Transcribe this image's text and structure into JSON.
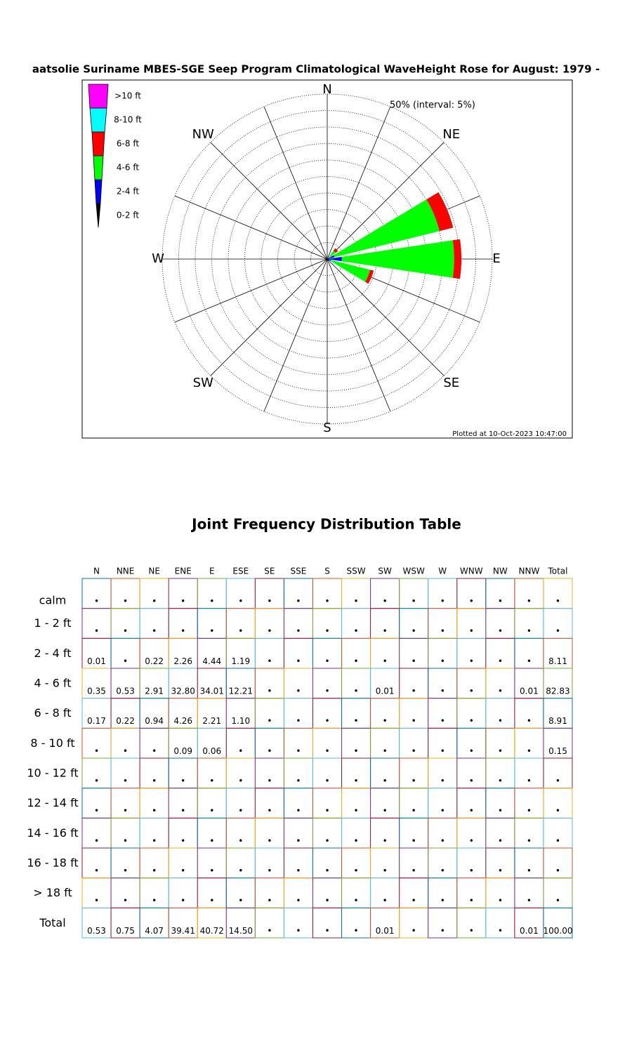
{
  "chart_data": {
    "type": "rose",
    "title": "aatsolie Suriname MBES-SGE Seep Program Climatological WaveHeight Rose for August: 1979 -",
    "ring_label": "50% (interval: 5%)",
    "note": "Plotted at 10-Oct-2023 10:47:00",
    "compass_labels": [
      "N",
      "NE",
      "E",
      "SE",
      "S",
      "SW",
      "W",
      "NW"
    ],
    "rlim": [
      0,
      50
    ],
    "rticks": [
      5,
      10,
      15,
      20,
      25,
      30,
      35,
      40,
      45,
      50
    ],
    "series": [
      {
        "name": ">10 ft",
        "color": "#ff00ff",
        "values": [
          0,
          0,
          0,
          0,
          0,
          0,
          0,
          0,
          0,
          0,
          0,
          0,
          0,
          0,
          0,
          0
        ]
      },
      {
        "name": "8-10 ft",
        "color": "#00ffff",
        "values": [
          0,
          0,
          0,
          0.09,
          0.06,
          0,
          0,
          0,
          0,
          0,
          0,
          0,
          0,
          0,
          0,
          0
        ]
      },
      {
        "name": "6-8 ft",
        "color": "#ff0000",
        "values": [
          0.17,
          0.22,
          0.94,
          4.26,
          2.21,
          1.1,
          0,
          0,
          0,
          0,
          0,
          0,
          0,
          0,
          0,
          0
        ]
      },
      {
        "name": "4-6 ft",
        "color": "#00ff00",
        "values": [
          0.35,
          0.53,
          2.91,
          32.8,
          34.01,
          12.21,
          0,
          0,
          0,
          0,
          0.01,
          0,
          0,
          0,
          0,
          0.01
        ]
      },
      {
        "name": "2-4 ft",
        "color": "#0000ff",
        "values": [
          0.01,
          0,
          0.22,
          2.26,
          4.44,
          1.19,
          0,
          0,
          0,
          0,
          0,
          0,
          0,
          0,
          0,
          0
        ]
      },
      {
        "name": "0-2 ft",
        "color": "#000000",
        "values": [
          0,
          0,
          0,
          0,
          0,
          0,
          0,
          0,
          0,
          0,
          0,
          0,
          0,
          0,
          0,
          0
        ]
      }
    ]
  },
  "table": {
    "title": "Joint Frequency Distribution Table",
    "columns": [
      "N",
      "NNE",
      "NE",
      "ENE",
      "E",
      "ESE",
      "SE",
      "SSE",
      "S",
      "SSW",
      "SW",
      "WSW",
      "W",
      "WNW",
      "NW",
      "NNW",
      "Total"
    ],
    "rows": [
      {
        "label": "calm",
        "cells": [
          "•",
          "•",
          "•",
          "•",
          "•",
          "•",
          "•",
          "•",
          "•",
          "•",
          "•",
          "•",
          "•",
          "•",
          "•",
          "•",
          "•"
        ]
      },
      {
        "label": "1 - 2 ft",
        "cells": [
          "•",
          "•",
          "•",
          "•",
          "•",
          "•",
          "•",
          "•",
          "•",
          "•",
          "•",
          "•",
          "•",
          "•",
          "•",
          "•",
          "•"
        ]
      },
      {
        "label": "2 - 4 ft",
        "cells": [
          "0.01",
          "•",
          "0.22",
          "2.26",
          "4.44",
          "1.19",
          "•",
          "•",
          "•",
          "•",
          "•",
          "•",
          "•",
          "•",
          "•",
          "•",
          "8.11"
        ]
      },
      {
        "label": "4 - 6 ft",
        "cells": [
          "0.35",
          "0.53",
          "2.91",
          "32.80",
          "34.01",
          "12.21",
          "•",
          "•",
          "•",
          "•",
          "0.01",
          "•",
          "•",
          "•",
          "•",
          "0.01",
          "82.83"
        ]
      },
      {
        "label": "6 - 8 ft",
        "cells": [
          "0.17",
          "0.22",
          "0.94",
          "4.26",
          "2.21",
          "1.10",
          "•",
          "•",
          "•",
          "•",
          "•",
          "•",
          "•",
          "•",
          "•",
          "•",
          "8.91"
        ]
      },
      {
        "label": "8 - 10 ft",
        "cells": [
          "•",
          "•",
          "•",
          "0.09",
          "0.06",
          "•",
          "•",
          "•",
          "•",
          "•",
          "•",
          "•",
          "•",
          "•",
          "•",
          "•",
          "0.15"
        ]
      },
      {
        "label": "10 - 12 ft",
        "cells": [
          "•",
          "•",
          "•",
          "•",
          "•",
          "•",
          "•",
          "•",
          "•",
          "•",
          "•",
          "•",
          "•",
          "•",
          "•",
          "•",
          "•"
        ]
      },
      {
        "label": "12 - 14 ft",
        "cells": [
          "•",
          "•",
          "•",
          "•",
          "•",
          "•",
          "•",
          "•",
          "•",
          "•",
          "•",
          "•",
          "•",
          "•",
          "•",
          "•",
          "•"
        ]
      },
      {
        "label": "14 - 16 ft",
        "cells": [
          "•",
          "•",
          "•",
          "•",
          "•",
          "•",
          "•",
          "•",
          "•",
          "•",
          "•",
          "•",
          "•",
          "•",
          "•",
          "•",
          "•"
        ]
      },
      {
        "label": "16 - 18 ft",
        "cells": [
          "•",
          "•",
          "•",
          "•",
          "•",
          "•",
          "•",
          "•",
          "•",
          "•",
          "•",
          "•",
          "•",
          "•",
          "•",
          "•",
          "•"
        ]
      },
      {
        "label": "> 18 ft",
        "cells": [
          "•",
          "•",
          "•",
          "•",
          "•",
          "•",
          "•",
          "•",
          "•",
          "•",
          "•",
          "•",
          "•",
          "•",
          "•",
          "•",
          "•"
        ]
      },
      {
        "label": "Total",
        "cells": [
          "0.53",
          "0.75",
          "4.07",
          "39.41",
          "40.72",
          "14.50",
          "•",
          "•",
          "•",
          "•",
          "0.01",
          "•",
          "•",
          "•",
          "•",
          "0.01",
          "100.00"
        ]
      }
    ]
  }
}
